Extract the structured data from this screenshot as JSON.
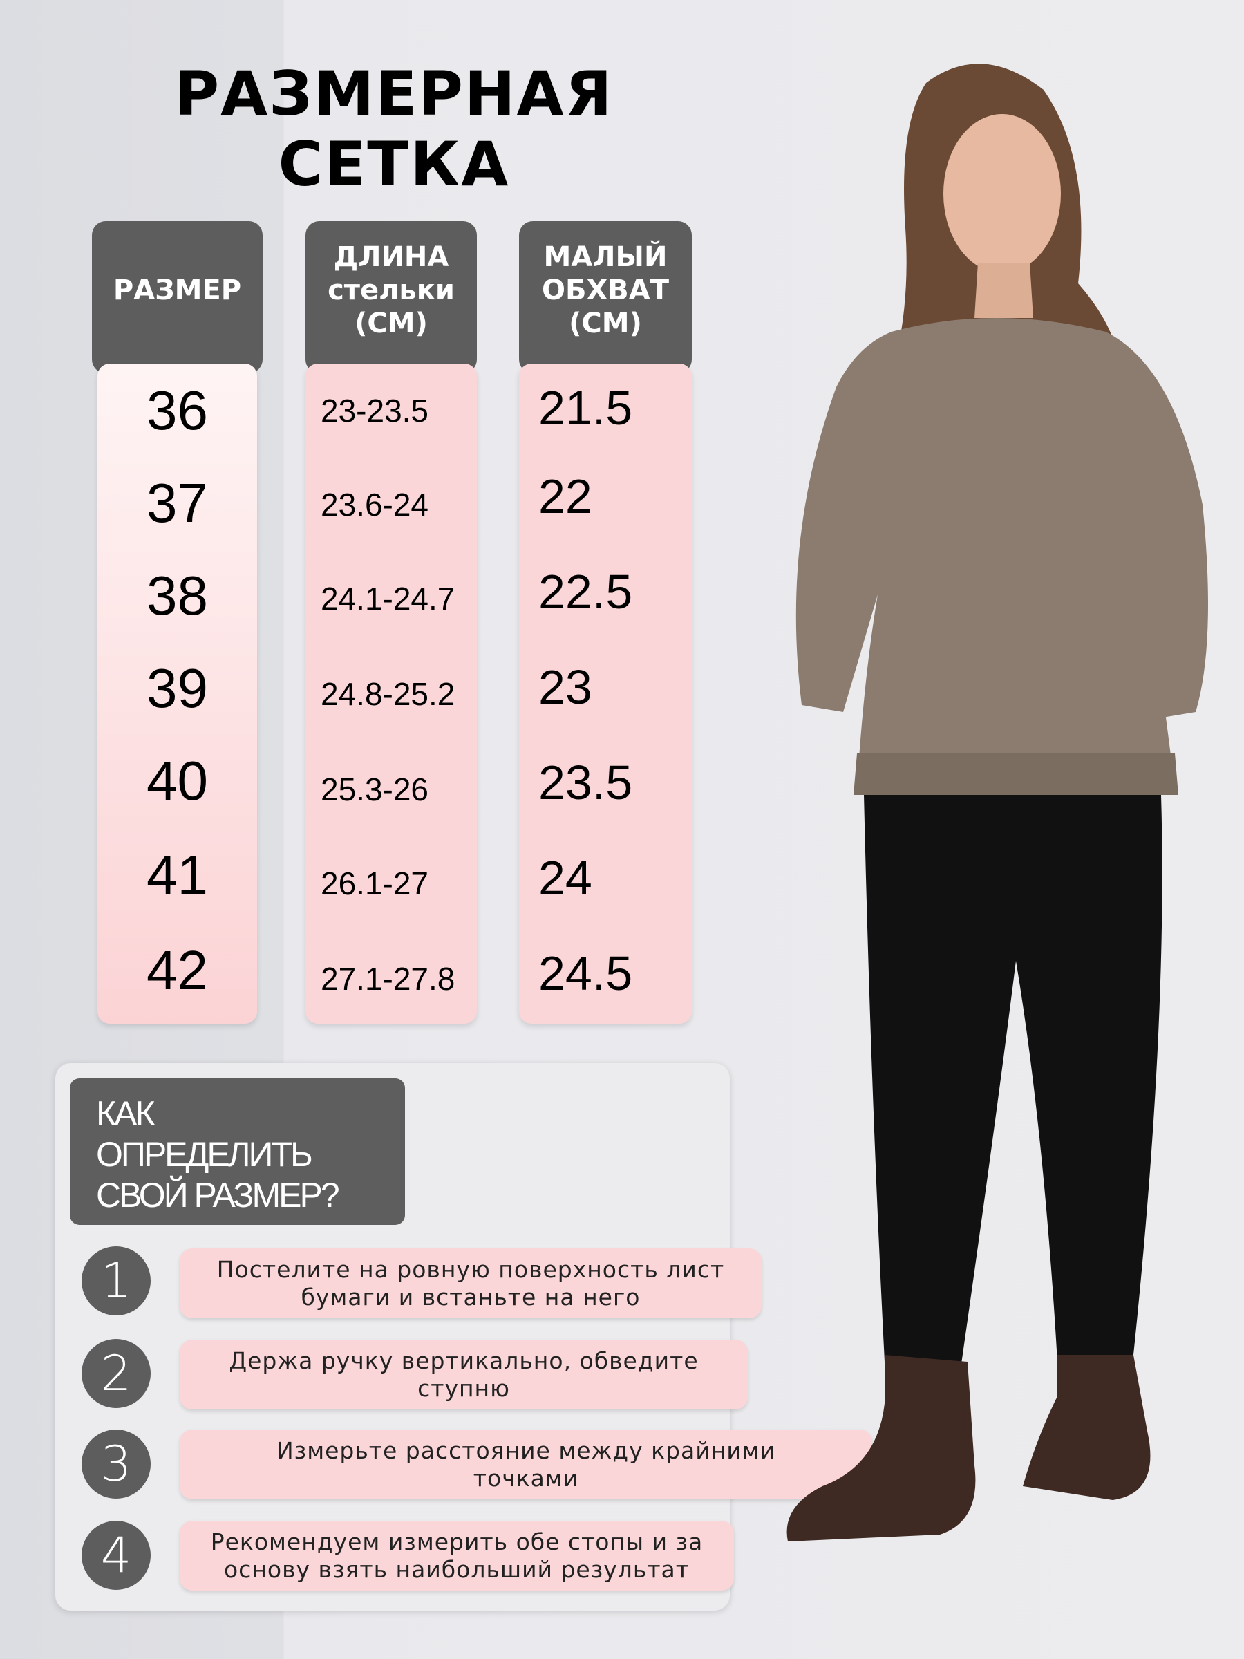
{
  "title": {
    "line1": "РАЗМЕРНАЯ",
    "line2": "СЕТКА"
  },
  "table": {
    "headers": [
      {
        "lines": [
          "РАЗМЕР"
        ]
      },
      {
        "lines": [
          "ДЛИНА",
          "стельки",
          "(СМ)"
        ]
      },
      {
        "lines": [
          "МАЛЫЙ",
          "ОБХВАТ",
          "(СМ)"
        ]
      }
    ],
    "sizes": [
      "36",
      "37",
      "38",
      "39",
      "40",
      "41",
      "42"
    ],
    "insole_length": [
      "23-23.5",
      "23.6-24",
      "24.1-24.7",
      "24.8-25.2",
      "25.3-26",
      "26.1-27",
      "27.1-27.8"
    ],
    "girth": [
      "21.5",
      "22",
      "22.5",
      "23",
      "23.5",
      "24",
      "24.5"
    ]
  },
  "howto": {
    "title_lines": [
      "КАК",
      "ОПРЕДЕЛИТЬ",
      "СВОЙ РАЗМЕР?"
    ],
    "steps": [
      {
        "num": "1",
        "text": "Постелите на ровную поверхность лист бумаги и встаньте на него"
      },
      {
        "num": "2",
        "text": "Держа ручку вертикально, обведите ступню"
      },
      {
        "num": "3",
        "text": "Измерьте расстояние между крайними точками"
      },
      {
        "num": "4",
        "text": "Рекомендуем измерить обе стопы и за основу взять наибольший результат"
      }
    ]
  },
  "colors": {
    "header_bg": "#5d5d5d",
    "cell_pink": "#fbd6d8",
    "background": "#ececef"
  }
}
